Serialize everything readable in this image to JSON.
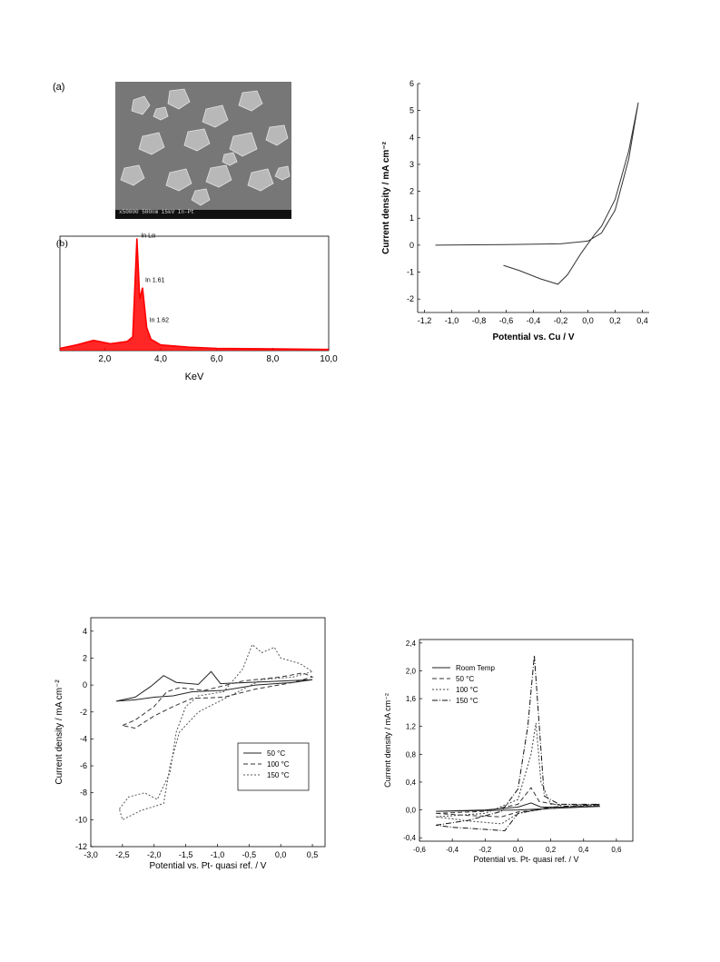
{
  "figure": {
    "panel_a_label": "(a)",
    "panel_b_label": "(b)",
    "sem_caption": "x50000 500nm 15kV In-Pt"
  },
  "chart_data": [
    {
      "id": "eds",
      "type": "line",
      "title": "",
      "xlabel": "KeV",
      "ylabel": "",
      "xlim": [
        0.4,
        10.0
      ],
      "ylim": [
        0,
        1
      ],
      "xticks": [
        "2,0",
        "4,0",
        "6,0",
        "8,0",
        "10,0"
      ],
      "xtick_values": [
        2,
        4,
        6,
        8,
        10
      ],
      "series": [
        {
          "color": "#ff0000",
          "points": [
            [
              0.4,
              0.02
            ],
            [
              1.0,
              0.05
            ],
            [
              1.6,
              0.09
            ],
            [
              2.2,
              0.06
            ],
            [
              2.8,
              0.08
            ],
            [
              3.0,
              0.12
            ],
            [
              3.15,
              0.98
            ],
            [
              3.25,
              0.45
            ],
            [
              3.35,
              0.55
            ],
            [
              3.5,
              0.2
            ],
            [
              3.65,
              0.1
            ],
            [
              4.0,
              0.05
            ],
            [
              5.0,
              0.03
            ],
            [
              6.0,
              0.02
            ],
            [
              8.0,
              0.015
            ],
            [
              10.0,
              0.01
            ]
          ]
        }
      ],
      "annotations": [
        {
          "text": "In Lα",
          "x": 3.2,
          "y": 0.99
        },
        {
          "text": "In 1.61",
          "x": 3.35,
          "y": 0.6
        },
        {
          "text": "In 1.62",
          "x": 3.5,
          "y": 0.25
        }
      ],
      "grid": false
    },
    {
      "id": "cv_cu",
      "type": "line",
      "title": "",
      "xlabel": "Potential vs. Cu / V",
      "ylabel": "Current density / mA cm⁻²",
      "xlim": [
        -1.25,
        0.45
      ],
      "ylim": [
        -2.5,
        6
      ],
      "xticks": [
        "-1,2",
        "-1,0",
        "-0,8",
        "-0,6",
        "-0,4",
        "-0,2",
        "0,0",
        "0,2",
        "0,4"
      ],
      "xtick_values": [
        -1.2,
        -1.0,
        -0.8,
        -0.6,
        -0.4,
        -0.2,
        0.0,
        0.2,
        0.4
      ],
      "yticks": [
        "-2",
        "-1",
        "0",
        "1",
        "2",
        "3",
        "4",
        "5",
        "6"
      ],
      "ytick_values": [
        -2,
        -1,
        0,
        1,
        2,
        3,
        4,
        5,
        6
      ],
      "series": [
        {
          "color": "#333333",
          "dash": "",
          "points": [
            [
              -1.12,
              0.0
            ],
            [
              -0.6,
              0.02
            ],
            [
              -0.2,
              0.05
            ],
            [
              0.0,
              0.15
            ],
            [
              0.1,
              0.45
            ],
            [
              0.2,
              1.3
            ],
            [
              0.3,
              3.2
            ],
            [
              0.37,
              5.3
            ],
            [
              0.3,
              3.5
            ],
            [
              0.2,
              1.7
            ],
            [
              0.1,
              0.7
            ],
            [
              0.05,
              0.4
            ],
            [
              -0.05,
              -0.3
            ],
            [
              -0.15,
              -1.1
            ],
            [
              -0.22,
              -1.45
            ],
            [
              -0.35,
              -1.25
            ],
            [
              -0.5,
              -0.95
            ],
            [
              -0.62,
              -0.75
            ]
          ]
        }
      ],
      "grid": false
    },
    {
      "id": "cv_pt_wide",
      "type": "line",
      "title": "",
      "xlabel": "Potential vs. Pt- quasi ref. / V",
      "ylabel": "Current density / mA cm⁻²",
      "xlim": [
        -3.0,
        0.7
      ],
      "ylim": [
        -12,
        5
      ],
      "xticks": [
        "-3,0",
        "-2,5",
        "-2,0",
        "-1,5",
        "-1,0",
        "-0,5",
        "0,0",
        "0,5"
      ],
      "xtick_values": [
        -3.0,
        -2.5,
        -2.0,
        -1.5,
        -1.0,
        -0.5,
        0.0,
        0.5
      ],
      "yticks": [
        "-12",
        "-10",
        "-8",
        "-6",
        "-4",
        "-2",
        "0",
        "2",
        "4"
      ],
      "ytick_values": [
        -12,
        -10,
        -8,
        -6,
        -4,
        -2,
        0,
        2,
        4
      ],
      "series": [
        {
          "name": "50 °C",
          "color": "#222222",
          "dash": "",
          "points": [
            [
              -2.6,
              -1.2
            ],
            [
              -2.3,
              -0.9
            ],
            [
              -2.05,
              -0.1
            ],
            [
              -1.85,
              0.7
            ],
            [
              -1.65,
              0.2
            ],
            [
              -1.3,
              0.05
            ],
            [
              -1.1,
              1.0
            ],
            [
              -0.95,
              0.1
            ],
            [
              -0.5,
              0.2
            ],
            [
              0.0,
              0.3
            ],
            [
              0.5,
              0.4
            ],
            [
              0.2,
              0.2
            ],
            [
              -0.4,
              0.0
            ],
            [
              -0.9,
              -0.4
            ],
            [
              -1.4,
              -0.5
            ],
            [
              -1.7,
              -0.8
            ],
            [
              -2.0,
              -0.9
            ],
            [
              -2.3,
              -1.1
            ],
            [
              -2.6,
              -1.2
            ]
          ]
        },
        {
          "name": "100 °C",
          "color": "#333333",
          "dash": "5,3",
          "points": [
            [
              -2.5,
              -3.0
            ],
            [
              -2.3,
              -2.6
            ],
            [
              -2.0,
              -1.6
            ],
            [
              -1.8,
              -0.5
            ],
            [
              -1.6,
              -0.2
            ],
            [
              -1.2,
              -0.4
            ],
            [
              -0.6,
              0.3
            ],
            [
              0.0,
              0.6
            ],
            [
              0.35,
              0.9
            ],
            [
              0.5,
              0.6
            ],
            [
              0.2,
              0.2
            ],
            [
              -0.4,
              -0.3
            ],
            [
              -0.9,
              -0.9
            ],
            [
              -1.4,
              -1.0
            ],
            [
              -1.7,
              -1.6
            ],
            [
              -2.0,
              -2.3
            ],
            [
              -2.3,
              -3.2
            ],
            [
              -2.5,
              -3.0
            ]
          ]
        },
        {
          "name": "150 °C",
          "color": "#555555",
          "dash": "2,2",
          "points": [
            [
              -2.55,
              -9.2
            ],
            [
              -2.4,
              -8.3
            ],
            [
              -2.15,
              -8.0
            ],
            [
              -1.95,
              -8.5
            ],
            [
              -1.75,
              -6.5
            ],
            [
              -1.65,
              -3.5
            ],
            [
              -1.5,
              -1.6
            ],
            [
              -1.3,
              -0.8
            ],
            [
              -0.9,
              -0.5
            ],
            [
              -0.6,
              1.2
            ],
            [
              -0.45,
              3.0
            ],
            [
              -0.3,
              2.4
            ],
            [
              -0.1,
              2.8
            ],
            [
              0.0,
              2.0
            ],
            [
              0.3,
              1.6
            ],
            [
              0.5,
              1.0
            ],
            [
              0.2,
              0.6
            ],
            [
              -0.3,
              0.4
            ],
            [
              -0.8,
              -0.8
            ],
            [
              -1.3,
              -2.0
            ],
            [
              -1.6,
              -3.5
            ],
            [
              -1.75,
              -6.0
            ],
            [
              -1.85,
              -8.8
            ],
            [
              -2.2,
              -9.3
            ],
            [
              -2.5,
              -10.0
            ],
            [
              -2.55,
              -9.2
            ]
          ]
        }
      ],
      "legend": {
        "position": "lower-right",
        "entries": [
          "50 °C",
          "100 °C",
          "150 °C"
        ]
      },
      "grid": false
    },
    {
      "id": "cv_pt_narrow",
      "type": "line",
      "title": "",
      "xlabel": "Potential vs. Pt- quasi ref. / V",
      "ylabel": "Current density / mA cm⁻²",
      "xlim": [
        -0.6,
        0.7
      ],
      "ylim": [
        -0.45,
        2.45
      ],
      "xticks": [
        "-0,6",
        "-0,4",
        "-0,2",
        "0,0",
        "0,2",
        "0,4",
        "0,6"
      ],
      "xtick_values": [
        -0.6,
        -0.4,
        -0.2,
        0.0,
        0.2,
        0.4,
        0.6
      ],
      "yticks": [
        "-0,4",
        "0,0",
        "0,4",
        "0,8",
        "1,2",
        "1,6",
        "2,0",
        "2,4"
      ],
      "ytick_values": [
        -0.4,
        0.0,
        0.4,
        0.8,
        1.2,
        1.6,
        2.0,
        2.4
      ],
      "series": [
        {
          "name": "Room Temp",
          "color": "#222222",
          "dash": "",
          "points": [
            [
              -0.5,
              -0.02
            ],
            [
              -0.2,
              0.0
            ],
            [
              0.0,
              0.04
            ],
            [
              0.08,
              0.1
            ],
            [
              0.14,
              0.04
            ],
            [
              0.3,
              0.04
            ],
            [
              0.5,
              0.05
            ],
            [
              0.2,
              0.02
            ],
            [
              0.0,
              0.0
            ],
            [
              -0.2,
              -0.01
            ],
            [
              -0.5,
              -0.02
            ]
          ]
        },
        {
          "name": "50 °C",
          "color": "#333333",
          "dash": "5,3",
          "points": [
            [
              -0.5,
              -0.05
            ],
            [
              -0.2,
              -0.02
            ],
            [
              0.0,
              0.08
            ],
            [
              0.08,
              0.32
            ],
            [
              0.13,
              0.12
            ],
            [
              0.3,
              0.05
            ],
            [
              0.5,
              0.06
            ],
            [
              0.2,
              0.02
            ],
            [
              0.0,
              -0.03
            ],
            [
              -0.1,
              -0.1
            ],
            [
              -0.3,
              -0.08
            ],
            [
              -0.5,
              -0.05
            ]
          ]
        },
        {
          "name": "100 °C",
          "color": "#444444",
          "dash": "2,2",
          "points": [
            [
              -0.5,
              -0.1
            ],
            [
              -0.2,
              -0.05
            ],
            [
              0.0,
              0.15
            ],
            [
              0.08,
              0.8
            ],
            [
              0.11,
              1.25
            ],
            [
              0.14,
              0.4
            ],
            [
              0.2,
              0.08
            ],
            [
              0.5,
              0.07
            ],
            [
              0.2,
              0.03
            ],
            [
              0.0,
              -0.05
            ],
            [
              -0.1,
              -0.2
            ],
            [
              -0.3,
              -0.16
            ],
            [
              -0.5,
              -0.1
            ]
          ]
        },
        {
          "name": "150 °C",
          "color": "#111111",
          "dash": "6,2,1,2",
          "points": [
            [
              -0.5,
              -0.22
            ],
            [
              -0.3,
              -0.15
            ],
            [
              -0.1,
              -0.02
            ],
            [
              0.0,
              0.3
            ],
            [
              0.06,
              1.2
            ],
            [
              0.1,
              2.22
            ],
            [
              0.13,
              1.2
            ],
            [
              0.16,
              0.2
            ],
            [
              0.25,
              0.08
            ],
            [
              0.5,
              0.08
            ],
            [
              0.2,
              0.04
            ],
            [
              0.0,
              -0.05
            ],
            [
              -0.08,
              -0.3
            ],
            [
              -0.2,
              -0.28
            ],
            [
              -0.4,
              -0.25
            ],
            [
              -0.5,
              -0.22
            ]
          ]
        }
      ],
      "legend": {
        "position": "top-left",
        "entries": [
          "Room Temp",
          "50 °C",
          "100 °C",
          "150 °C"
        ]
      },
      "grid": false
    }
  ]
}
